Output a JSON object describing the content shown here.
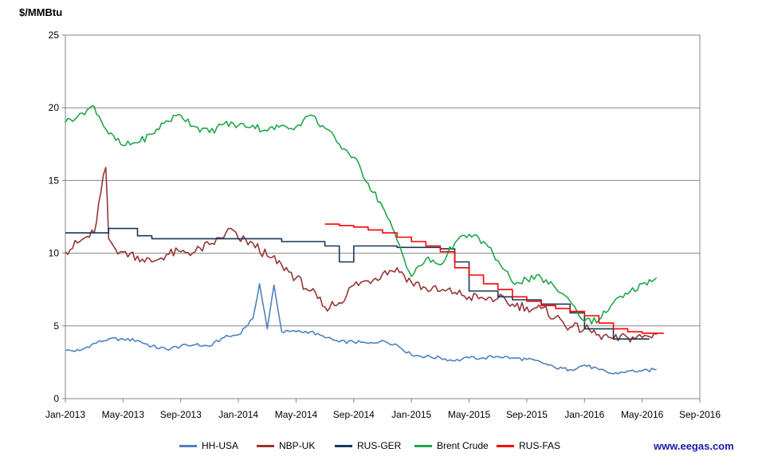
{
  "chart_data": {
    "type": "line",
    "ylabel": "$/MMBtu",
    "ylim": [
      0,
      25
    ],
    "yticks": [
      0,
      5,
      10,
      15,
      20,
      25
    ],
    "x_range": [
      "2013-01",
      "2016-09"
    ],
    "xticks": [
      "Jan-2013",
      "May-2013",
      "Sep-2013",
      "Jan-2014",
      "May-2014",
      "Sep-2014",
      "Jan-2015",
      "May-2015",
      "Sep-2015",
      "Jan-2016",
      "May-2016",
      "Sep-2016"
    ],
    "grid": "horizontal",
    "legend_position": "bottom",
    "series": [
      {
        "name": "HH-USA",
        "color": "#4f81bd",
        "points": [
          [
            "2013-01",
            3.3
          ],
          [
            "2013-02",
            3.3
          ],
          [
            "2013-03",
            3.8
          ],
          [
            "2013-04",
            4.1
          ],
          [
            "2013-05",
            4.1
          ],
          [
            "2013-06",
            4.0
          ],
          [
            "2013-07",
            3.6
          ],
          [
            "2013-08",
            3.4
          ],
          [
            "2013-09",
            3.6
          ],
          [
            "2013-10",
            3.7
          ],
          [
            "2013-11",
            3.6
          ],
          [
            "2013-12",
            4.2
          ],
          [
            "2014-01",
            4.4
          ],
          [
            "2014-02",
            5.5
          ],
          [
            "2014-02-15",
            7.9
          ],
          [
            "2014-03",
            4.8
          ],
          [
            "2014-03-15",
            7.8
          ],
          [
            "2014-04",
            4.6
          ],
          [
            "2014-05",
            4.6
          ],
          [
            "2014-06",
            4.6
          ],
          [
            "2014-07",
            4.2
          ],
          [
            "2014-08",
            3.9
          ],
          [
            "2014-09",
            3.9
          ],
          [
            "2014-10",
            3.8
          ],
          [
            "2014-11",
            4.0
          ],
          [
            "2014-12",
            3.7
          ],
          [
            "2015-01",
            3.0
          ],
          [
            "2015-02",
            2.9
          ],
          [
            "2015-03",
            2.8
          ],
          [
            "2015-04",
            2.6
          ],
          [
            "2015-05",
            2.8
          ],
          [
            "2015-06",
            2.8
          ],
          [
            "2015-07",
            2.9
          ],
          [
            "2015-08",
            2.8
          ],
          [
            "2015-09",
            2.7
          ],
          [
            "2015-10",
            2.5
          ],
          [
            "2015-11",
            2.1
          ],
          [
            "2015-12",
            2.0
          ],
          [
            "2016-01",
            2.3
          ],
          [
            "2016-02",
            2.0
          ],
          [
            "2016-03",
            1.7
          ],
          [
            "2016-04",
            1.9
          ],
          [
            "2016-05",
            1.9
          ],
          [
            "2016-06",
            2.0
          ]
        ]
      },
      {
        "name": "NBP-UK",
        "color": "#943634",
        "points": [
          [
            "2013-01",
            10.1
          ],
          [
            "2013-02",
            10.8
          ],
          [
            "2013-03",
            11.4
          ],
          [
            "2013-03-15",
            14.2
          ],
          [
            "2013-03-25",
            15.9
          ],
          [
            "2013-04",
            11.0
          ],
          [
            "2013-04-15",
            10.3
          ],
          [
            "2013-05",
            10.1
          ],
          [
            "2013-06",
            9.8
          ],
          [
            "2013-07",
            9.4
          ],
          [
            "2013-08",
            9.9
          ],
          [
            "2013-09",
            10.1
          ],
          [
            "2013-10",
            10.1
          ],
          [
            "2013-11",
            10.6
          ],
          [
            "2013-12",
            11.1
          ],
          [
            "2013-12-15",
            11.7
          ],
          [
            "2014-01",
            11.0
          ],
          [
            "2014-02",
            10.7
          ],
          [
            "2014-03",
            9.8
          ],
          [
            "2014-04",
            9.2
          ],
          [
            "2014-05",
            8.3
          ],
          [
            "2014-06",
            7.4
          ],
          [
            "2014-07",
            6.3
          ],
          [
            "2014-08",
            6.6
          ],
          [
            "2014-09",
            7.8
          ],
          [
            "2014-10",
            8.1
          ],
          [
            "2014-11",
            8.6
          ],
          [
            "2014-12",
            9.0
          ],
          [
            "2015-01",
            8.0
          ],
          [
            "2015-02",
            7.6
          ],
          [
            "2015-03",
            7.4
          ],
          [
            "2015-04",
            7.3
          ],
          [
            "2015-05",
            7.0
          ],
          [
            "2015-06",
            6.9
          ],
          [
            "2015-07",
            6.9
          ],
          [
            "2015-08",
            6.5
          ],
          [
            "2015-09",
            6.3
          ],
          [
            "2015-10",
            6.2
          ],
          [
            "2015-11",
            5.6
          ],
          [
            "2015-12",
            4.9
          ],
          [
            "2016-01",
            4.8
          ],
          [
            "2016-02",
            4.4
          ],
          [
            "2016-03",
            4.1
          ],
          [
            "2016-04",
            4.2
          ],
          [
            "2016-05",
            4.2
          ],
          [
            "2016-06",
            4.4
          ]
        ]
      },
      {
        "name": "RUS-GER",
        "color": "#17375e",
        "points": [
          [
            "2013-01",
            11.4
          ],
          [
            "2013-04",
            11.7
          ],
          [
            "2013-06",
            11.2
          ],
          [
            "2013-07",
            11.0
          ],
          [
            "2014-01",
            11.0
          ],
          [
            "2014-04",
            10.8
          ],
          [
            "2014-07",
            10.5
          ],
          [
            "2014-08",
            9.4
          ],
          [
            "2014-09",
            10.5
          ],
          [
            "2014-12",
            10.4
          ],
          [
            "2015-01",
            10.4
          ],
          [
            "2015-03",
            10.3
          ],
          [
            "2015-04",
            9.4
          ],
          [
            "2015-05",
            7.4
          ],
          [
            "2015-07",
            7.0
          ],
          [
            "2015-08",
            6.8
          ],
          [
            "2015-10",
            6.5
          ],
          [
            "2015-12",
            5.9
          ],
          [
            "2016-01",
            4.8
          ],
          [
            "2016-03",
            4.1
          ],
          [
            "2016-05",
            4.1
          ]
        ]
      },
      {
        "name": "Brent Crude",
        "color": "#22a64a",
        "points": [
          [
            "2013-01",
            19.0
          ],
          [
            "2013-02",
            19.6
          ],
          [
            "2013-03",
            20.1
          ],
          [
            "2013-04",
            18.2
          ],
          [
            "2013-05",
            17.4
          ],
          [
            "2013-06",
            17.6
          ],
          [
            "2013-07",
            18.2
          ],
          [
            "2013-08",
            19.1
          ],
          [
            "2013-09",
            19.5
          ],
          [
            "2013-10",
            18.7
          ],
          [
            "2013-11",
            18.3
          ],
          [
            "2013-12",
            18.9
          ],
          [
            "2014-01",
            18.8
          ],
          [
            "2014-02",
            18.8
          ],
          [
            "2014-03",
            18.4
          ],
          [
            "2014-04",
            18.8
          ],
          [
            "2014-05",
            18.7
          ],
          [
            "2014-06",
            19.5
          ],
          [
            "2014-07",
            18.6
          ],
          [
            "2014-08",
            17.5
          ],
          [
            "2014-09",
            16.6
          ],
          [
            "2014-10",
            14.8
          ],
          [
            "2014-11",
            13.2
          ],
          [
            "2014-12",
            10.9
          ],
          [
            "2015-01",
            8.4
          ],
          [
            "2015-02",
            9.6
          ],
          [
            "2015-03",
            9.2
          ],
          [
            "2015-04",
            10.7
          ],
          [
            "2015-05",
            11.3
          ],
          [
            "2015-06",
            10.8
          ],
          [
            "2015-07",
            9.5
          ],
          [
            "2015-08",
            8.0
          ],
          [
            "2015-09",
            8.2
          ],
          [
            "2015-10",
            8.3
          ],
          [
            "2015-11",
            7.6
          ],
          [
            "2015-12",
            6.7
          ],
          [
            "2016-01",
            5.3
          ],
          [
            "2016-02",
            5.4
          ],
          [
            "2016-03",
            6.6
          ],
          [
            "2016-04",
            7.2
          ],
          [
            "2016-05",
            7.9
          ],
          [
            "2016-06",
            8.3
          ]
        ]
      },
      {
        "name": "RUS-FAS",
        "color": "#ff0000",
        "points": [
          [
            "2014-07",
            12.0
          ],
          [
            "2014-08",
            11.9
          ],
          [
            "2014-09",
            11.8
          ],
          [
            "2014-10",
            11.6
          ],
          [
            "2014-11",
            11.4
          ],
          [
            "2014-12",
            11.1
          ],
          [
            "2015-01",
            10.8
          ],
          [
            "2015-02",
            10.5
          ],
          [
            "2015-03",
            10.1
          ],
          [
            "2015-04",
            9.0
          ],
          [
            "2015-05",
            8.5
          ],
          [
            "2015-06",
            7.9
          ],
          [
            "2015-07",
            7.5
          ],
          [
            "2015-08",
            7.0
          ],
          [
            "2015-09",
            6.7
          ],
          [
            "2015-10",
            6.4
          ],
          [
            "2015-11",
            6.2
          ],
          [
            "2015-12",
            6.0
          ],
          [
            "2016-01",
            5.7
          ],
          [
            "2016-02",
            5.2
          ],
          [
            "2016-03",
            4.8
          ],
          [
            "2016-04",
            4.6
          ],
          [
            "2016-05",
            4.5
          ],
          [
            "2016-06",
            4.5
          ]
        ]
      }
    ]
  },
  "source_label": "www.eegas.com"
}
